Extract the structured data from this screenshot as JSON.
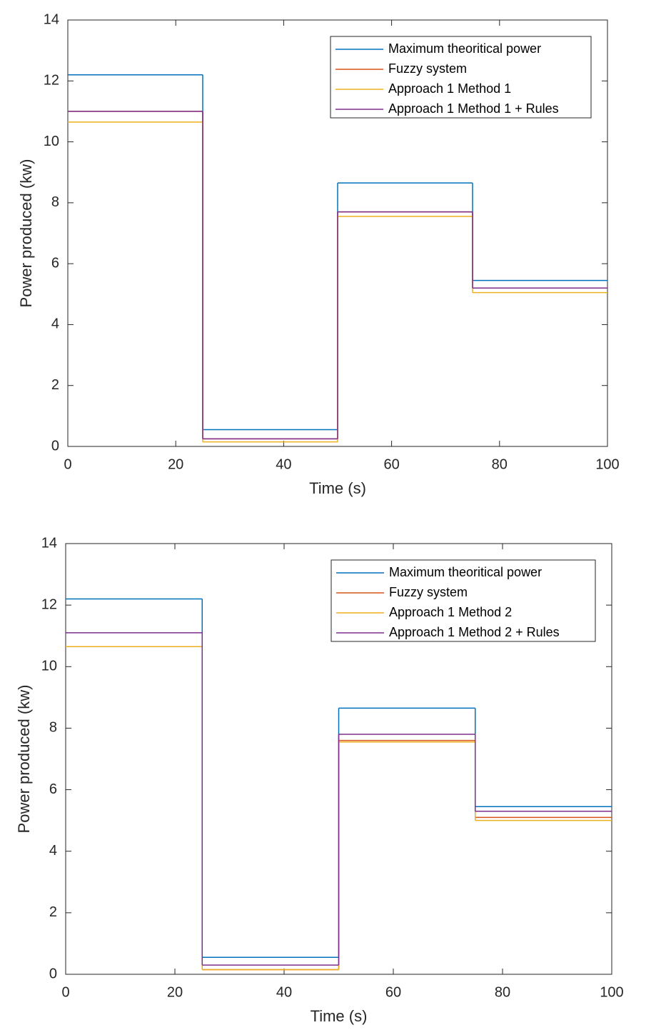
{
  "chart_data": [
    {
      "type": "stairs",
      "xlabel": "Time (s)",
      "ylabel": "Power produced (kw)",
      "x": [
        0,
        25,
        50,
        75
      ],
      "xlim": [
        0,
        100
      ],
      "xticks": [
        0,
        20,
        40,
        60,
        80,
        100
      ],
      "ylim": [
        0,
        14
      ],
      "yticks": [
        0,
        2,
        4,
        6,
        8,
        10,
        12,
        14
      ],
      "legend": "upper right",
      "series": [
        {
          "name": "Maximum theoritical power",
          "color": "#0072bd",
          "values": [
            12.2,
            0.55,
            8.65,
            5.45
          ]
        },
        {
          "name": "Fuzzy system",
          "color": "#d95319",
          "values": [
            11,
            0.25,
            7.7,
            5.2
          ]
        },
        {
          "name": "Approach 1 Method 1",
          "color": "#edb120",
          "values": [
            10.65,
            0.15,
            7.55,
            5.05
          ]
        },
        {
          "name": "Approach 1 Method 1 + Rules",
          "color": "#7e2f8e",
          "values": [
            11,
            0.25,
            7.7,
            5.2
          ]
        }
      ]
    },
    {
      "type": "stairs",
      "xlabel": "Time (s)",
      "ylabel": "Power produced (kw)",
      "x": [
        0,
        25,
        50,
        75
      ],
      "xlim": [
        0,
        100
      ],
      "xticks": [
        0,
        20,
        40,
        60,
        80,
        100
      ],
      "ylim": [
        0,
        14
      ],
      "yticks": [
        0,
        2,
        4,
        6,
        8,
        10,
        12,
        14
      ],
      "legend": "upper right",
      "series": [
        {
          "name": "Maximum theoritical power",
          "color": "#0072bd",
          "values": [
            12.2,
            0.55,
            8.65,
            5.45
          ]
        },
        {
          "name": "Fuzzy system",
          "color": "#d95319",
          "values": [
            10.65,
            0.15,
            7.6,
            5.1
          ]
        },
        {
          "name": "Approach 1 Method 2",
          "color": "#edb120",
          "values": [
            10.65,
            0.15,
            7.55,
            5.0
          ]
        },
        {
          "name": "Approach 1 Method 2 + Rules",
          "color": "#7e2f8e",
          "values": [
            11.1,
            0.3,
            7.8,
            5.3
          ]
        }
      ]
    }
  ]
}
